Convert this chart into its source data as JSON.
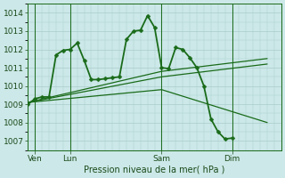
{
  "background_color": "#cce8e8",
  "grid_color": "#aacccc",
  "line_color": "#1a6b1a",
  "text_color": "#1a4a1a",
  "xlabel": "Pression niveau de la mer( hPa )",
  "ylim": [
    1006.5,
    1014.5
  ],
  "yticks": [
    1007,
    1008,
    1009,
    1010,
    1011,
    1012,
    1013,
    1014
  ],
  "xlim": [
    0,
    18
  ],
  "day_labels": [
    "Ven",
    "Lun",
    "Sam",
    "Dim"
  ],
  "day_positions": [
    0.5,
    3.0,
    9.5,
    14.5
  ],
  "vline_positions": [
    0.5,
    3.0,
    9.5,
    14.5
  ],
  "main_series": {
    "x": [
      0.0,
      0.5,
      1.0,
      1.5,
      2.0,
      2.5,
      3.0,
      3.5,
      4.0,
      4.5,
      5.0,
      5.5,
      6.0,
      6.5,
      7.0,
      7.5,
      8.0,
      8.5,
      9.0,
      9.5,
      10.0,
      10.5,
      11.0,
      11.5,
      12.0,
      12.5,
      13.0,
      13.5,
      14.0,
      14.5,
      15.0,
      15.5,
      16.0,
      16.5,
      17.0
    ],
    "y": [
      1009.0,
      1009.3,
      1009.4,
      1009.4,
      1011.7,
      1011.95,
      1012.0,
      1012.35,
      1011.4,
      1010.35,
      1010.35,
      1010.4,
      1010.45,
      1010.5,
      1012.55,
      1013.0,
      1013.05,
      1013.85,
      1013.2,
      1011.0,
      1010.95,
      1012.1,
      1012.0,
      1011.55,
      1011.0,
      1010.0,
      1008.2,
      1007.5,
      1007.1,
      1007.15,
      null,
      null,
      null,
      null,
      null
    ],
    "marker": "D",
    "linewidth": 1.3,
    "markersize": 2.5
  },
  "trend_lines": [
    {
      "x": [
        0.0,
        9.5,
        17.0
      ],
      "y": [
        1009.1,
        1010.5,
        1011.2
      ]
    },
    {
      "x": [
        0.0,
        9.5,
        17.0
      ],
      "y": [
        1009.1,
        1010.8,
        1011.5
      ]
    },
    {
      "x": [
        0.0,
        9.5,
        17.0
      ],
      "y": [
        1009.1,
        1009.8,
        1008.0
      ]
    }
  ]
}
